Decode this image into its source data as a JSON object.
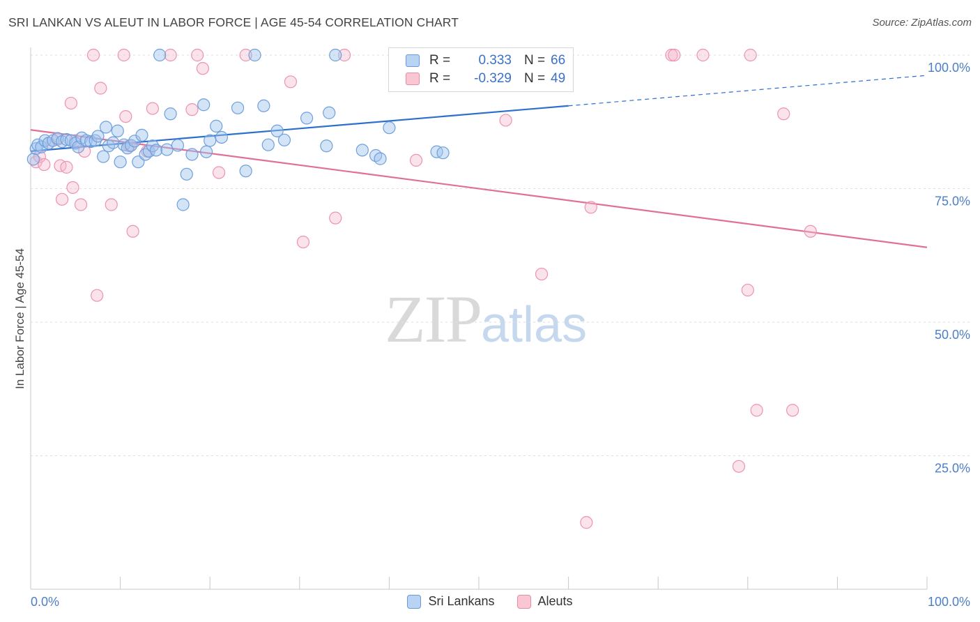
{
  "title": "SRI LANKAN VS ALEUT IN LABOR FORCE | AGE 45-54 CORRELATION CHART",
  "source": "Source: ZipAtlas.com",
  "watermark": {
    "zip": "ZIP",
    "atlas": "atlas"
  },
  "legend": {
    "r_label": "R =",
    "n_label": "N =",
    "rows": [
      {
        "name": "Sri Lankans",
        "r": "0.333",
        "n": "66",
        "fill": "#b9d3f3",
        "stroke": "#6a9ad6"
      },
      {
        "name": "Aleuts",
        "r": "-0.329",
        "n": "49",
        "fill": "#f9c6d4",
        "stroke": "#e98aa6"
      }
    ]
  },
  "colors": {
    "blue_point": "#6d9fdc",
    "blue_fill": "rgba(160,195,238,0.45)",
    "blue_line": "#2c6fce",
    "pink_point": "#ec93ad",
    "pink_fill": "rgba(246,185,204,0.40)",
    "pink_line": "#e0709a",
    "grid": "#dedede",
    "tick_text": "#4a7fc8"
  },
  "chart_data": {
    "type": "scatter",
    "title": "SRI LANKAN VS ALEUT IN LABOR FORCE | AGE 45-54 CORRELATION CHART",
    "xlabel": "",
    "ylabel": "In Labor Force | Age 45-54",
    "xlim": [
      0,
      100
    ],
    "ylim": [
      0,
      100
    ],
    "x_tick_labels": [
      {
        "v": 0,
        "t": "0.0%"
      },
      {
        "v": 100,
        "t": "100.0%"
      }
    ],
    "y_tick_labels": [
      {
        "v": 25,
        "t": "25.0%"
      },
      {
        "v": 50,
        "t": "50.0%"
      },
      {
        "v": 75,
        "t": "75.0%"
      },
      {
        "v": 100,
        "t": "100.0%"
      }
    ],
    "grid": true,
    "legend_position": "top-center",
    "series": [
      {
        "name": "Sri Lankans",
        "trend": {
          "x0": 0,
          "y0": 82.0,
          "x1": 60,
          "y1": 90.5,
          "dash_to_x": 100,
          "dash_to_y": 96.2
        },
        "points": [
          [
            0.3,
            80.5
          ],
          [
            0.6,
            82.5
          ],
          [
            0.8,
            83.2
          ],
          [
            1.2,
            82.8
          ],
          [
            1.6,
            84.0
          ],
          [
            2.0,
            83.5
          ],
          [
            2.5,
            84.0
          ],
          [
            3.0,
            84.4
          ],
          [
            3.5,
            83.8
          ],
          [
            4.0,
            84.2
          ],
          [
            4.5,
            84.0
          ],
          [
            5.0,
            83.5
          ],
          [
            5.3,
            82.8
          ],
          [
            5.7,
            84.5
          ],
          [
            6.2,
            84.0
          ],
          [
            6.7,
            83.8
          ],
          [
            7.2,
            84.0
          ],
          [
            7.5,
            84.8
          ],
          [
            8.1,
            81.0
          ],
          [
            8.4,
            86.5
          ],
          [
            8.7,
            83.0
          ],
          [
            9.2,
            83.6
          ],
          [
            9.7,
            85.8
          ],
          [
            10.0,
            80.0
          ],
          [
            10.4,
            83.2
          ],
          [
            10.8,
            82.6
          ],
          [
            11.2,
            83.1
          ],
          [
            11.6,
            83.9
          ],
          [
            12.0,
            80.0
          ],
          [
            12.4,
            85.0
          ],
          [
            12.8,
            81.4
          ],
          [
            13.2,
            82.0
          ],
          [
            13.6,
            83.0
          ],
          [
            14.0,
            82.2
          ],
          [
            14.4,
            100.0
          ],
          [
            15.2,
            82.3
          ],
          [
            15.6,
            89.0
          ],
          [
            16.4,
            83.1
          ],
          [
            17.0,
            72.0
          ],
          [
            17.4,
            77.7
          ],
          [
            18.0,
            81.4
          ],
          [
            19.3,
            90.7
          ],
          [
            19.6,
            81.9
          ],
          [
            20.0,
            84.0
          ],
          [
            20.7,
            86.7
          ],
          [
            21.3,
            84.6
          ],
          [
            23.1,
            90.1
          ],
          [
            24.0,
            78.3
          ],
          [
            25.0,
            100.0
          ],
          [
            26.0,
            90.5
          ],
          [
            26.5,
            83.2
          ],
          [
            27.5,
            85.8
          ],
          [
            28.3,
            84.1
          ],
          [
            30.8,
            88.2
          ],
          [
            33.0,
            83.0
          ],
          [
            33.3,
            89.2
          ],
          [
            34.0,
            100.0
          ],
          [
            37.0,
            82.2
          ],
          [
            38.5,
            81.2
          ],
          [
            39.0,
            80.6
          ],
          [
            40.0,
            86.4
          ],
          [
            42.0,
            100.0
          ],
          [
            45.0,
            100.0
          ],
          [
            45.3,
            81.9
          ],
          [
            46.0,
            81.7
          ],
          [
            52.0,
            100.0
          ]
        ]
      },
      {
        "name": "Aleuts",
        "trend": {
          "x0": 0,
          "y0": 86.0,
          "x1": 100,
          "y1": 64.0
        },
        "points": [
          [
            0.6,
            80.0
          ],
          [
            1.0,
            81.0
          ],
          [
            1.5,
            79.5
          ],
          [
            2.0,
            83.5
          ],
          [
            3.0,
            84.2
          ],
          [
            3.3,
            79.3
          ],
          [
            3.5,
            73.0
          ],
          [
            4.0,
            79.0
          ],
          [
            4.5,
            91.0
          ],
          [
            4.7,
            75.2
          ],
          [
            5.0,
            84.0
          ],
          [
            5.6,
            72.0
          ],
          [
            6.0,
            82.0
          ],
          [
            7.0,
            100.0
          ],
          [
            7.4,
            55.0
          ],
          [
            7.8,
            93.8
          ],
          [
            9.0,
            72.0
          ],
          [
            10.4,
            100.0
          ],
          [
            10.6,
            88.5
          ],
          [
            11.0,
            83.0
          ],
          [
            11.4,
            67.0
          ],
          [
            13.0,
            82.0
          ],
          [
            13.6,
            90.0
          ],
          [
            15.6,
            100.0
          ],
          [
            18.0,
            89.8
          ],
          [
            18.6,
            100.0
          ],
          [
            19.2,
            97.5
          ],
          [
            21.0,
            78.0
          ],
          [
            24.0,
            100.0
          ],
          [
            29.0,
            95.0
          ],
          [
            30.4,
            65.0
          ],
          [
            34.0,
            69.5
          ],
          [
            35.0,
            100.0
          ],
          [
            43.0,
            80.3
          ],
          [
            53.0,
            87.8
          ],
          [
            55.0,
            100.0
          ],
          [
            57.0,
            59.0
          ],
          [
            62.0,
            12.5
          ],
          [
            62.5,
            71.5
          ],
          [
            71.5,
            100.0
          ],
          [
            71.8,
            100.0
          ],
          [
            75.0,
            100.0
          ],
          [
            79.0,
            23.0
          ],
          [
            80.0,
            56.0
          ],
          [
            80.3,
            100.0
          ],
          [
            81.0,
            33.5
          ],
          [
            84.0,
            89.0
          ],
          [
            85.0,
            33.5
          ],
          [
            87.0,
            67.0
          ]
        ]
      }
    ]
  }
}
